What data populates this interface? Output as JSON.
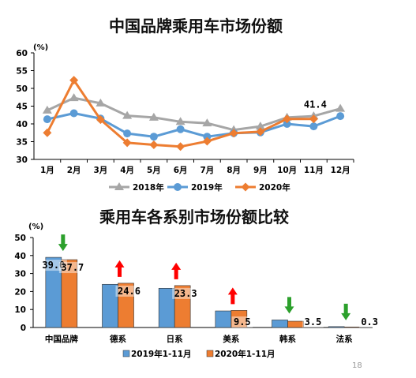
{
  "page_number": "18",
  "colors": {
    "s2018": "#a6a6a6",
    "s2019": "#5b9bd5",
    "s2020": "#ed7d31",
    "arrow_up": "#ff0000",
    "arrow_down": "#2ca02c"
  },
  "chart_data": [
    {
      "type": "line",
      "title": "中国品牌乘用车市场份额",
      "unit_label": "(%)",
      "categories": [
        "1月",
        "2月",
        "3月",
        "4月",
        "5月",
        "6月",
        "7月",
        "8月",
        "9月",
        "10月",
        "11月",
        "12月"
      ],
      "ylim": [
        30,
        60
      ],
      "yticks": [
        30,
        35,
        40,
        45,
        50,
        55,
        60
      ],
      "grid": false,
      "legend_position": "bottom",
      "series": [
        {
          "name": "2018年",
          "color_key": "s2018",
          "marker": "triangle",
          "values": [
            43.8,
            47.3,
            45.8,
            42.3,
            41.8,
            40.6,
            40.2,
            38.3,
            39.3,
            41.8,
            42.2,
            44.3
          ]
        },
        {
          "name": "2019年",
          "color_key": "s2019",
          "marker": "circle",
          "values": [
            41.3,
            43.0,
            41.5,
            37.3,
            36.4,
            38.5,
            36.4,
            37.4,
            37.6,
            40.0,
            39.3,
            42.2
          ]
        },
        {
          "name": "2020年",
          "color_key": "s2020",
          "marker": "diamond",
          "values": [
            37.5,
            52.3,
            41.2,
            34.7,
            34.1,
            33.6,
            35.1,
            37.4,
            37.8,
            41.4,
            41.4,
            null
          ]
        }
      ],
      "annotations": [
        {
          "text": "41.4",
          "category": "11月",
          "value": 41.4
        }
      ]
    },
    {
      "type": "bar",
      "title": "乘用车各系别市场份额比较",
      "unit_label": "(%)",
      "categories": [
        "中国品牌",
        "德系",
        "日系",
        "美系",
        "韩系",
        "法系"
      ],
      "ylim": [
        0,
        50
      ],
      "yticks": [
        0,
        10,
        20,
        30,
        40,
        50
      ],
      "grid": false,
      "legend_position": "bottom",
      "series": [
        {
          "name": "2019年1-11月",
          "color_key": "s2019",
          "values": [
            39.0,
            24.0,
            21.8,
            9.2,
            4.2,
            0.5
          ]
        },
        {
          "name": "2020年1-11月",
          "color_key": "s2020",
          "values": [
            37.7,
            24.6,
            23.3,
            9.5,
            3.5,
            0.3
          ]
        }
      ],
      "data_labels": [
        {
          "series": 0,
          "category": "中国品牌",
          "text": "39.0"
        },
        {
          "series": 1,
          "category": "中国品牌",
          "text": "37.7"
        },
        {
          "series": 1,
          "category": "德系",
          "text": "24.6"
        },
        {
          "series": 1,
          "category": "日系",
          "text": "23.3"
        },
        {
          "series": 1,
          "category": "美系",
          "text": "9.5"
        },
        {
          "series": 1,
          "category": "韩系",
          "text": "3.5"
        },
        {
          "series": 1,
          "category": "法系",
          "text": "0.3"
        }
      ],
      "trend_arrows": [
        {
          "category": "中国品牌",
          "direction": "down"
        },
        {
          "category": "德系",
          "direction": "up"
        },
        {
          "category": "日系",
          "direction": "up"
        },
        {
          "category": "美系",
          "direction": "up"
        },
        {
          "category": "韩系",
          "direction": "down"
        },
        {
          "category": "法系",
          "direction": "down"
        }
      ]
    }
  ]
}
